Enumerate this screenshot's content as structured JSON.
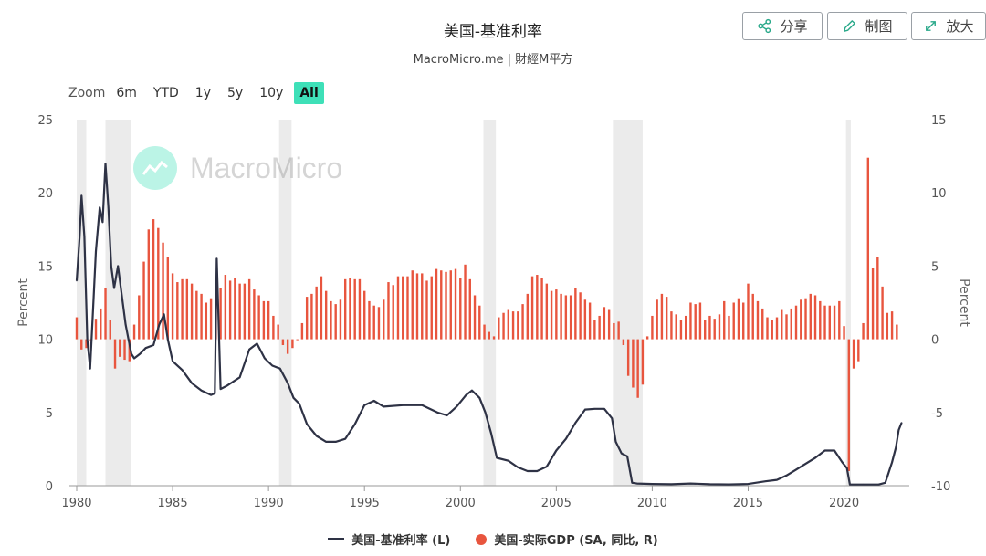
{
  "header": {
    "title": "美国-基准利率",
    "subtitle": "MacroMicro.me | 財經M平方"
  },
  "toolbar": {
    "share_label": "分享",
    "draw_label": "制图",
    "zoom_label": "放大"
  },
  "zoom": {
    "label": "Zoom",
    "options": [
      "6m",
      "YTD",
      "1y",
      "5y",
      "10y",
      "All"
    ],
    "active": "All"
  },
  "watermark": "MacroMicro",
  "colors": {
    "rate": "#2e3245",
    "gdp": "#e8553e",
    "recession": "#ebebeb",
    "accent": "#3ee0b8"
  },
  "chart_data": {
    "type": "line+bar",
    "x_range": [
      1980,
      2023
    ],
    "x_ticks": [
      "1980",
      "1985",
      "1990",
      "1995",
      "2000",
      "2005",
      "2010",
      "2015",
      "2020"
    ],
    "y_left": {
      "label": "Percent",
      "ticks": [
        "25",
        "20",
        "15",
        "10",
        "5",
        "0"
      ],
      "range": [
        0,
        25
      ]
    },
    "y_right": {
      "label": "Percent",
      "ticks": [
        "15",
        "10",
        "5",
        "0",
        "-5",
        "-10"
      ],
      "range": [
        -10,
        15
      ]
    },
    "recessions": [
      [
        1980.0,
        1980.5
      ],
      [
        1981.5,
        1982.85
      ],
      [
        1990.55,
        1991.2
      ],
      [
        2001.2,
        2001.85
      ],
      [
        2007.95,
        2009.5
      ],
      [
        2020.1,
        2020.35
      ]
    ],
    "series": [
      {
        "name": "美国-基准利率 (L)",
        "axis": "left",
        "kind": "line",
        "x": [
          1980.0,
          1980.15,
          1980.25,
          1980.4,
          1980.55,
          1980.7,
          1980.85,
          1981.0,
          1981.2,
          1981.35,
          1981.5,
          1981.65,
          1981.8,
          1981.95,
          1982.15,
          1982.35,
          1982.55,
          1982.7,
          1982.85,
          1983.0,
          1983.3,
          1983.6,
          1984.0,
          1984.3,
          1984.55,
          1984.75,
          1985.0,
          1985.5,
          1986.0,
          1986.5,
          1987.0,
          1987.2,
          1987.3,
          1987.5,
          1987.8,
          1988.5,
          1989.0,
          1989.4,
          1989.8,
          1990.2,
          1990.6,
          1991.0,
          1991.3,
          1991.6,
          1992.0,
          1992.5,
          1993.0,
          1993.5,
          1994.0,
          1994.5,
          1995.0,
          1995.5,
          1996.0,
          1997.0,
          1998.0,
          1998.8,
          1999.3,
          1999.8,
          2000.3,
          2000.6,
          2001.0,
          2001.3,
          2001.6,
          2001.9,
          2002.5,
          2003.0,
          2003.5,
          2004.0,
          2004.5,
          2005.0,
          2005.5,
          2006.0,
          2006.5,
          2007.0,
          2007.5,
          2007.9,
          2008.1,
          2008.4,
          2008.7,
          2008.95,
          2009.2,
          2010.0,
          2011.0,
          2012.0,
          2013.0,
          2014.0,
          2015.0,
          2015.9,
          2016.5,
          2017.0,
          2017.5,
          2018.0,
          2018.5,
          2019.0,
          2019.5,
          2019.9,
          2020.15,
          2020.3,
          2021.0,
          2021.8,
          2022.15,
          2022.3,
          2022.5,
          2022.7,
          2022.85,
          2023.0
        ],
        "values": [
          14.0,
          17.0,
          19.8,
          17.0,
          10.0,
          8.0,
          12.0,
          16.0,
          19.0,
          18.0,
          22.0,
          19.0,
          15.0,
          13.5,
          15.0,
          13.0,
          11.0,
          10.0,
          9.0,
          8.7,
          9.0,
          9.4,
          9.6,
          11.0,
          11.7,
          10.0,
          8.5,
          7.9,
          7.0,
          6.5,
          6.2,
          6.3,
          15.5,
          6.6,
          6.8,
          7.4,
          9.3,
          9.7,
          8.7,
          8.2,
          8.0,
          7.0,
          6.0,
          5.6,
          4.2,
          3.4,
          3.0,
          3.0,
          3.2,
          4.2,
          5.5,
          5.8,
          5.4,
          5.5,
          5.5,
          5.0,
          4.8,
          5.4,
          6.2,
          6.5,
          6.0,
          5.0,
          3.6,
          1.9,
          1.7,
          1.25,
          1.0,
          1.0,
          1.3,
          2.4,
          3.2,
          4.3,
          5.2,
          5.25,
          5.25,
          4.6,
          3.0,
          2.2,
          2.0,
          0.2,
          0.15,
          0.12,
          0.1,
          0.15,
          0.1,
          0.09,
          0.12,
          0.3,
          0.4,
          0.7,
          1.1,
          1.5,
          1.9,
          2.4,
          2.4,
          1.6,
          1.2,
          0.08,
          0.08,
          0.08,
          0.2,
          0.8,
          1.6,
          2.6,
          3.8,
          4.3
        ]
      },
      {
        "name": "美国-实际GDP (SA, 同比, R)",
        "axis": "right",
        "kind": "bar",
        "x": [
          1980.0,
          1980.25,
          1980.5,
          1980.75,
          1981.0,
          1981.25,
          1981.5,
          1981.75,
          1982.0,
          1982.25,
          1982.5,
          1982.75,
          1983.0,
          1983.25,
          1983.5,
          1983.75,
          1984.0,
          1984.25,
          1984.5,
          1984.75,
          1985.0,
          1985.25,
          1985.5,
          1985.75,
          1986.0,
          1986.25,
          1986.5,
          1986.75,
          1987.0,
          1987.25,
          1987.5,
          1987.75,
          1988.0,
          1988.25,
          1988.5,
          1988.75,
          1989.0,
          1989.25,
          1989.5,
          1989.75,
          1990.0,
          1990.25,
          1990.5,
          1990.75,
          1991.0,
          1991.25,
          1991.5,
          1991.75,
          1992.0,
          1992.25,
          1992.5,
          1992.75,
          1993.0,
          1993.25,
          1993.5,
          1993.75,
          1994.0,
          1994.25,
          1994.5,
          1994.75,
          1995.0,
          1995.25,
          1995.5,
          1995.75,
          1996.0,
          1996.25,
          1996.5,
          1996.75,
          1997.0,
          1997.25,
          1997.5,
          1997.75,
          1998.0,
          1998.25,
          1998.5,
          1998.75,
          1999.0,
          1999.25,
          1999.5,
          1999.75,
          2000.0,
          2000.25,
          2000.5,
          2000.75,
          2001.0,
          2001.25,
          2001.5,
          2001.75,
          2002.0,
          2002.25,
          2002.5,
          2002.75,
          2003.0,
          2003.25,
          2003.5,
          2003.75,
          2004.0,
          2004.25,
          2004.5,
          2004.75,
          2005.0,
          2005.25,
          2005.5,
          2005.75,
          2006.0,
          2006.25,
          2006.5,
          2006.75,
          2007.0,
          2007.25,
          2007.5,
          2007.75,
          2008.0,
          2008.25,
          2008.5,
          2008.75,
          2009.0,
          2009.25,
          2009.5,
          2009.75,
          2010.0,
          2010.25,
          2010.5,
          2010.75,
          2011.0,
          2011.25,
          2011.5,
          2011.75,
          2012.0,
          2012.25,
          2012.5,
          2012.75,
          2013.0,
          2013.25,
          2013.5,
          2013.75,
          2014.0,
          2014.25,
          2014.5,
          2014.75,
          2015.0,
          2015.25,
          2015.5,
          2015.75,
          2016.0,
          2016.25,
          2016.5,
          2016.75,
          2017.0,
          2017.25,
          2017.5,
          2017.75,
          2018.0,
          2018.25,
          2018.5,
          2018.75,
          2019.0,
          2019.25,
          2019.5,
          2019.75,
          2020.0,
          2020.25,
          2020.5,
          2020.75,
          2021.0,
          2021.25,
          2021.5,
          2021.75,
          2022.0,
          2022.25,
          2022.5,
          2022.75
        ],
        "values": [
          1.5,
          -0.7,
          -0.6,
          -0.1,
          1.4,
          2.1,
          3.5,
          1.3,
          -2.0,
          -1.2,
          -1.4,
          -1.5,
          1.0,
          3.0,
          5.3,
          7.5,
          8.2,
          7.6,
          6.6,
          5.6,
          4.5,
          3.9,
          4.1,
          4.1,
          3.8,
          3.3,
          3.1,
          2.5,
          2.8,
          3.3,
          3.5,
          4.4,
          4.0,
          4.2,
          3.8,
          3.8,
          4.1,
          3.4,
          3.0,
          2.6,
          2.6,
          1.6,
          1.0,
          -0.4,
          -1.0,
          -0.6,
          0.0,
          1.1,
          2.9,
          3.1,
          3.6,
          4.3,
          3.3,
          2.6,
          2.4,
          2.7,
          4.1,
          4.2,
          4.1,
          4.1,
          3.3,
          2.6,
          2.3,
          2.2,
          2.7,
          3.9,
          3.7,
          4.3,
          4.3,
          4.3,
          4.7,
          4.5,
          4.5,
          4.0,
          4.3,
          4.8,
          4.7,
          4.6,
          4.7,
          4.8,
          4.2,
          5.1,
          4.1,
          3.0,
          2.3,
          1.0,
          0.5,
          0.2,
          1.5,
          1.8,
          2.0,
          1.9,
          1.9,
          2.4,
          3.1,
          4.3,
          4.4,
          4.2,
          3.8,
          3.3,
          3.4,
          3.1,
          3.0,
          3.0,
          3.5,
          3.2,
          2.7,
          2.5,
          1.3,
          1.6,
          2.2,
          2.0,
          1.1,
          1.2,
          -0.4,
          -2.5,
          -3.3,
          -4.0,
          -3.1,
          0.2,
          1.6,
          2.7,
          3.1,
          2.9,
          1.9,
          1.7,
          1.3,
          1.6,
          2.5,
          2.4,
          2.5,
          1.3,
          1.6,
          1.4,
          1.7,
          2.6,
          1.6,
          2.5,
          2.8,
          2.5,
          3.8,
          3.1,
          2.6,
          2.1,
          1.5,
          1.3,
          1.5,
          2.0,
          1.7,
          2.1,
          2.3,
          2.7,
          2.8,
          3.1,
          3.0,
          2.6,
          2.3,
          2.3,
          2.3,
          2.6,
          0.9,
          -9.0,
          -2.0,
          -1.5,
          1.1,
          12.4,
          4.9,
          5.6,
          3.6,
          1.8,
          1.9,
          1.0
        ]
      }
    ]
  },
  "legend": [
    {
      "label": "美国-基准利率 (L)",
      "marker": "line"
    },
    {
      "label": "美国-实际GDP (SA, 同比, R)",
      "marker": "dot"
    }
  ]
}
